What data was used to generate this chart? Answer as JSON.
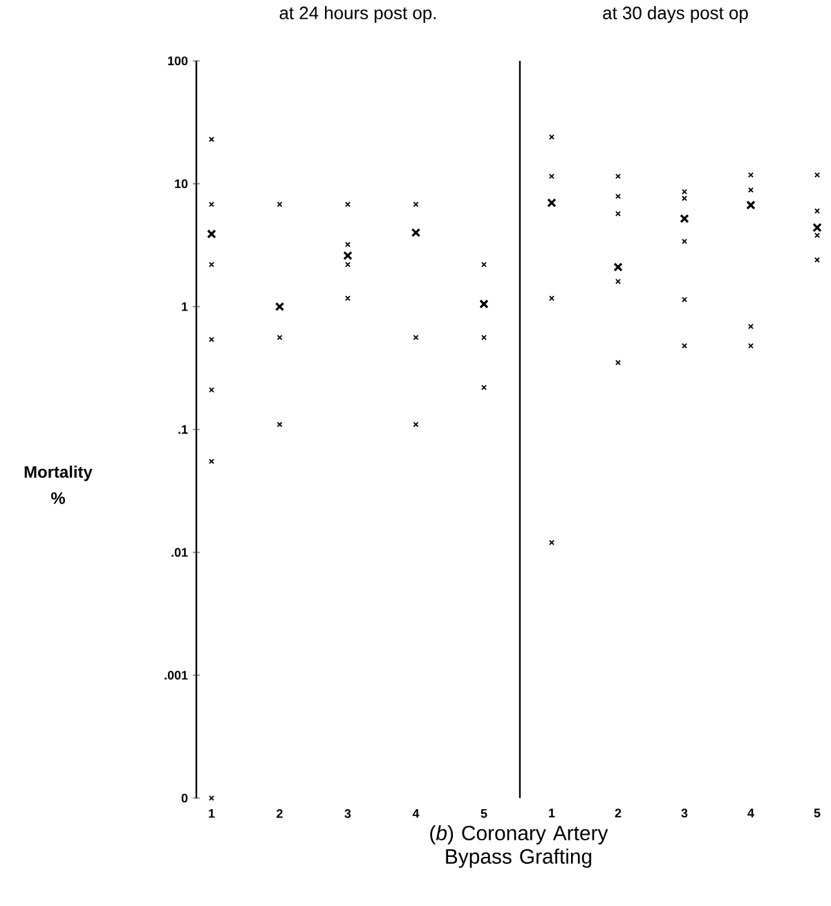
{
  "chart_data": [
    {
      "type": "scatter",
      "title": "at 24 hours post op.",
      "ylabel": "Mortality %",
      "xlim": [
        1,
        5
      ],
      "xticks": [
        1,
        2,
        3,
        4,
        5
      ],
      "ylim": [
        0.0001,
        100
      ],
      "log": "y",
      "yticks": [
        100,
        10,
        1,
        {
          "value": 0.1,
          "label": ".1"
        },
        {
          "value": 0.01,
          "label": ".01"
        },
        {
          "value": 0.001,
          "label": ".001"
        },
        {
          "value": 0.0001,
          "label": "0"
        }
      ],
      "annotations": [
        "(*b*) Coronary Artery Bypass Grafting"
      ],
      "series": [
        {
          "color": "#000000",
          "marker": "cross",
          "x": [
            1,
            1,
            1,
            1,
            1,
            1,
            1,
            2,
            2,
            2,
            3,
            3,
            3,
            3,
            4,
            4,
            4,
            5,
            5,
            5
          ],
          "values": [
            23,
            6.8,
            2.2,
            0.54,
            0.21,
            0.055,
            0.0001,
            6.8,
            0.56,
            0.11,
            6.8,
            3.2,
            2.2,
            1.17,
            6.8,
            0.56,
            0.11,
            2.2,
            0.56,
            0.22
          ]
        },
        {
          "color": "#000000",
          "marker": "cross",
          "x": [
            1,
            2,
            3,
            4,
            5
          ],
          "values": [
            3.9,
            1.0,
            2.6,
            4.0,
            1.05
          ]
        }
      ]
    },
    {
      "type": "scatter",
      "title": "at 30 days post op",
      "tick_labels": "x",
      "xlim": [
        1,
        5
      ],
      "xticks": [
        1,
        2,
        3,
        4,
        5
      ],
      "ylim": [
        0.0001,
        100
      ],
      "log": "y",
      "series": [
        {
          "color": "#000000",
          "marker": "cross",
          "x": [
            1,
            1,
            1,
            1,
            2,
            2,
            2,
            2,
            2,
            3,
            3,
            3,
            3,
            3,
            4,
            4,
            4,
            4,
            5,
            5,
            5,
            5
          ],
          "values": [
            24,
            11.5,
            1.17,
            0.012,
            11.5,
            7.9,
            5.7,
            1.6,
            0.35,
            8.6,
            7.6,
            3.4,
            1.14,
            0.48,
            11.8,
            8.9,
            0.69,
            0.48,
            11.8,
            6.0,
            3.8,
            2.4
          ]
        },
        {
          "color": "#000000",
          "marker": "cross",
          "x": [
            1,
            2,
            3,
            4,
            5
          ],
          "values": [
            7.0,
            2.1,
            5.2,
            6.7,
            4.4
          ]
        }
      ]
    }
  ]
}
